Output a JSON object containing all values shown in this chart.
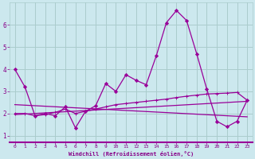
{
  "bg_color": "#cce8ee",
  "grid_color": "#aacccc",
  "line_color": "#990099",
  "xlabel": "Windchill (Refroidissement éolien,°C)",
  "xlabel_color": "#880088",
  "tick_color": "#880088",
  "ylim": [
    0.7,
    7.0
  ],
  "xlim": [
    -0.5,
    23.5
  ],
  "yticks": [
    1,
    2,
    3,
    4,
    5,
    6
  ],
  "xticks": [
    0,
    1,
    2,
    3,
    4,
    5,
    6,
    7,
    8,
    9,
    10,
    11,
    12,
    13,
    14,
    15,
    16,
    17,
    18,
    19,
    20,
    21,
    22,
    23
  ],
  "series1_x": [
    0,
    1,
    2,
    3,
    4,
    5,
    6,
    7,
    8,
    9,
    10,
    11,
    12,
    13,
    14,
    15,
    16,
    17,
    18,
    19,
    20,
    21,
    22,
    23
  ],
  "series1_y": [
    4.0,
    3.2,
    1.9,
    2.0,
    1.9,
    2.3,
    1.35,
    2.1,
    2.35,
    3.35,
    3.0,
    3.75,
    3.5,
    3.3,
    4.6,
    6.1,
    6.65,
    6.2,
    4.7,
    3.1,
    1.65,
    1.4,
    1.65,
    2.6
  ],
  "series2_x": [
    0,
    1,
    2,
    3,
    4,
    5,
    6,
    7,
    8,
    9,
    10,
    11,
    12,
    13,
    14,
    15,
    16,
    17,
    18,
    19,
    20,
    21,
    22,
    23
  ],
  "series2_y": [
    2.0,
    2.0,
    1.9,
    1.95,
    2.05,
    2.2,
    2.0,
    2.1,
    2.2,
    2.3,
    2.4,
    2.45,
    2.5,
    2.55,
    2.6,
    2.65,
    2.72,
    2.78,
    2.83,
    2.88,
    2.9,
    2.92,
    2.95,
    2.6
  ],
  "series3_x": [
    0,
    23
  ],
  "series3_y": [
    1.95,
    2.55
  ],
  "series4_x": [
    0,
    23
  ],
  "series4_y": [
    2.4,
    1.85
  ]
}
